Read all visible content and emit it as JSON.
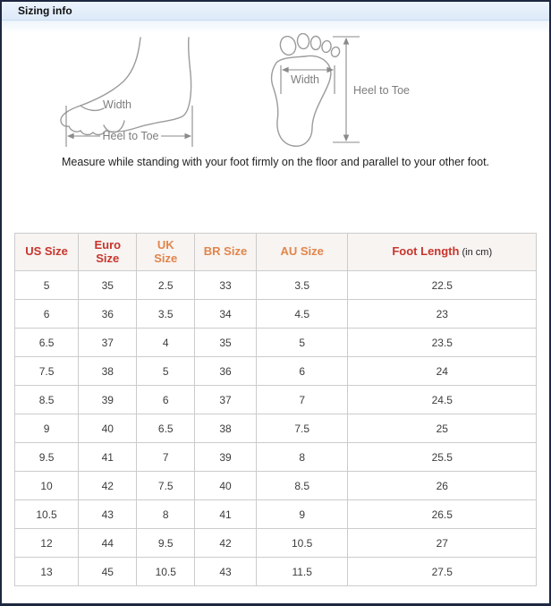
{
  "frame": {
    "title": "Sizing info"
  },
  "diagrams": {
    "side_view": {
      "width_label": "Width",
      "length_label": "Heel to Toe"
    },
    "print_view": {
      "width_label": "Width",
      "length_label": "Heel to Toe"
    },
    "instruction": "Measure while standing with your foot firmly on the floor and parallel to your other foot."
  },
  "size_table": {
    "unit_note": "(in cm)",
    "columns": [
      {
        "key": "us",
        "label": "US Size",
        "color": "#c8352c"
      },
      {
        "key": "euro",
        "label": "Euro Size",
        "color": "#c8352c"
      },
      {
        "key": "uk",
        "label": "UK Size",
        "color": "#e2854a"
      },
      {
        "key": "br",
        "label": "BR Size",
        "color": "#e2854a"
      },
      {
        "key": "au",
        "label": "AU Size",
        "color": "#e2854a"
      },
      {
        "key": "foot",
        "label": "Foot Length",
        "color": "#c8352c",
        "suffix": "(in cm)"
      }
    ],
    "column_widths_pct": [
      12.2,
      11.2,
      11.1,
      11.8,
      17.6,
      36.1
    ],
    "rows": [
      [
        "5",
        "35",
        "2.5",
        "33",
        "3.5",
        "22.5"
      ],
      [
        "6",
        "36",
        "3.5",
        "34",
        "4.5",
        "23"
      ],
      [
        "6.5",
        "37",
        "4",
        "35",
        "5",
        "23.5"
      ],
      [
        "7.5",
        "38",
        "5",
        "36",
        "6",
        "24"
      ],
      [
        "8.5",
        "39",
        "6",
        "37",
        "7",
        "24.5"
      ],
      [
        "9",
        "40",
        "6.5",
        "38",
        "7.5",
        "25"
      ],
      [
        "9.5",
        "41",
        "7",
        "39",
        "8",
        "25.5"
      ],
      [
        "10",
        "42",
        "7.5",
        "40",
        "8.5",
        "26"
      ],
      [
        "10.5",
        "43",
        "8",
        "41",
        "9",
        "26.5"
      ],
      [
        "12",
        "44",
        "9.5",
        "42",
        "10.5",
        "27"
      ],
      [
        "13",
        "45",
        "10.5",
        "43",
        "11.5",
        "27.5"
      ]
    ]
  }
}
